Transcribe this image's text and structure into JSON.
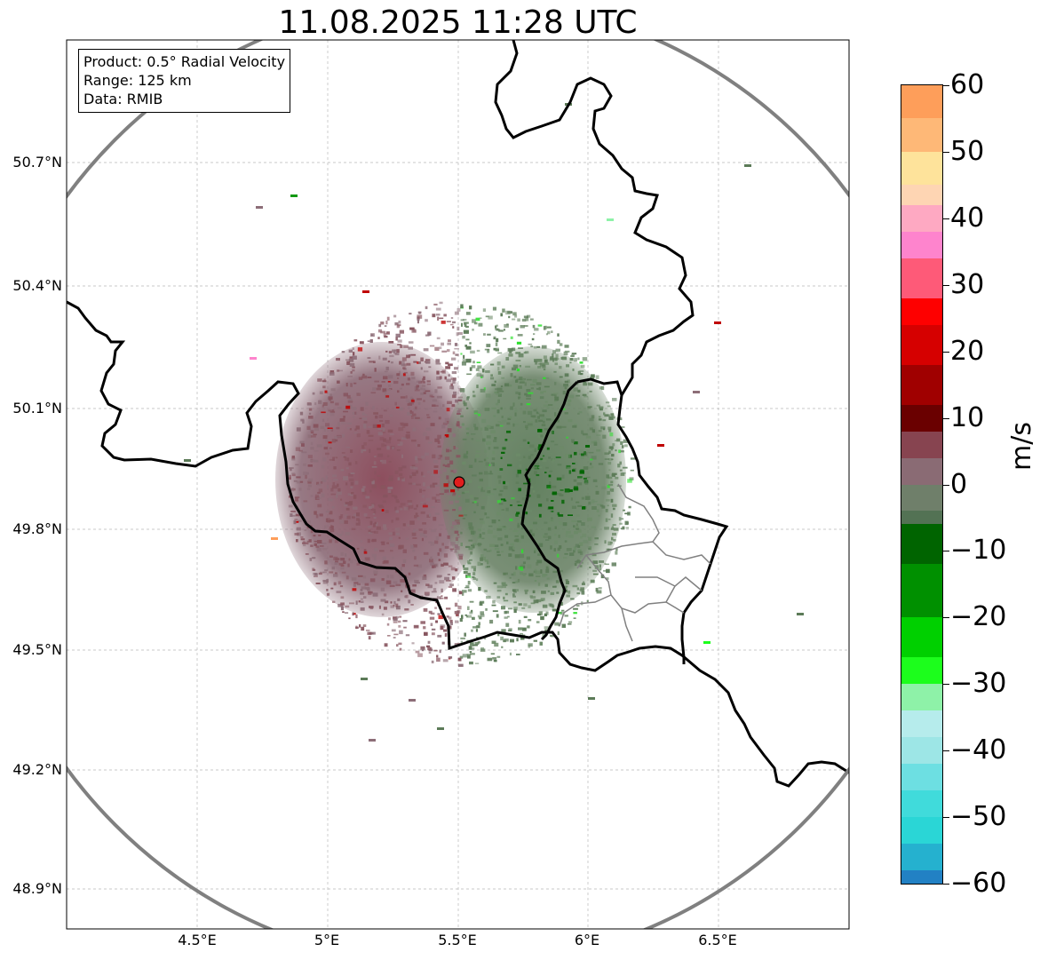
{
  "title": "11.08.2025 11:28 UTC",
  "info": {
    "product": "Product: 0.5° Radial Velocity",
    "range": "Range: 125 km",
    "data": "Data: RMIB"
  },
  "lat_ticks": [
    "50.7°N",
    "50.4°N",
    "50.1°N",
    "49.8°N",
    "49.5°N",
    "49.2°N",
    "48.9°N"
  ],
  "lon_ticks": [
    "4.5°E",
    "5°E",
    "5.5°E",
    "6°E",
    "6.5°E"
  ],
  "radar_site": {
    "lat": 49.914,
    "lon": 5.506
  },
  "colorbar": {
    "unit": "m/s",
    "tick_labels": [
      "60",
      "50",
      "40",
      "30",
      "20",
      "10",
      "0",
      "−10",
      "−20",
      "−30",
      "−40",
      "−50",
      "−60"
    ],
    "min": -60,
    "max": 60,
    "stops": [
      {
        "from": 55,
        "to": 60,
        "color": "#fe9e5a"
      },
      {
        "from": 50,
        "to": 55,
        "color": "#feb877"
      },
      {
        "from": 45,
        "to": 50,
        "color": "#fee39b"
      },
      {
        "from": 42,
        "to": 45,
        "color": "#fed5b3"
      },
      {
        "from": 38,
        "to": 42,
        "color": "#fea9c2"
      },
      {
        "from": 34,
        "to": 38,
        "color": "#fe84cd"
      },
      {
        "from": 28,
        "to": 34,
        "color": "#fe5a78"
      },
      {
        "from": 24,
        "to": 28,
        "color": "#fe0000"
      },
      {
        "from": 18,
        "to": 24,
        "color": "#d60000"
      },
      {
        "from": 12,
        "to": 18,
        "color": "#a00000"
      },
      {
        "from": 8,
        "to": 12,
        "color": "#6a0000"
      },
      {
        "from": 4,
        "to": 8,
        "color": "#874450"
      },
      {
        "from": 0,
        "to": 4,
        "color": "#8a6b74"
      },
      {
        "from": -4,
        "to": 0,
        "color": "#6f7f6a"
      },
      {
        "from": -6,
        "to": -4,
        "color": "#537254"
      },
      {
        "from": -12,
        "to": -6,
        "color": "#006400"
      },
      {
        "from": -20,
        "to": -12,
        "color": "#009000"
      },
      {
        "from": -26,
        "to": -20,
        "color": "#00d000"
      },
      {
        "from": -30,
        "to": -26,
        "color": "#1cfe1c"
      },
      {
        "from": -34,
        "to": -30,
        "color": "#8ef2a8"
      },
      {
        "from": -38,
        "to": -34,
        "color": "#b6ecec"
      },
      {
        "from": -42,
        "to": -38,
        "color": "#9de6e6"
      },
      {
        "from": -46,
        "to": -42,
        "color": "#6ddfe2"
      },
      {
        "from": -50,
        "to": -46,
        "color": "#40dbdb"
      },
      {
        "from": -54,
        "to": -50,
        "color": "#2ad6d6"
      },
      {
        "from": -58,
        "to": -54,
        "color": "#25b1cf"
      },
      {
        "from": -60,
        "to": -58,
        "color": "#2281c4"
      }
    ]
  },
  "colors": {
    "incoming": "#87555f",
    "outgoing": "#5c7b58",
    "strong_out": "#006400",
    "range_ring": "#808080",
    "border": "#000000",
    "site": "#e01e1e"
  }
}
